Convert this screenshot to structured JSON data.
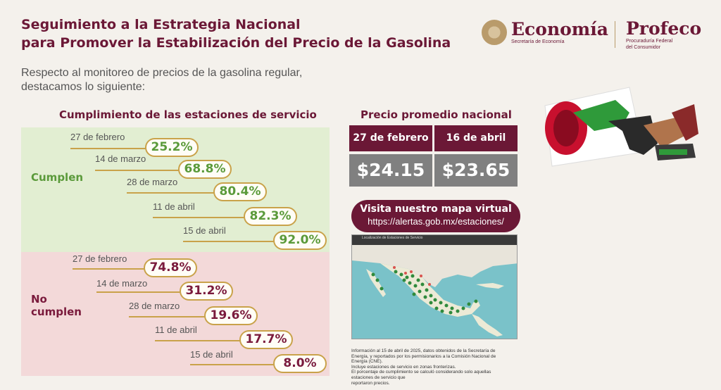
{
  "header": {
    "title_line1": "Seguimiento a la Estrategia Nacional",
    "title_line2": "para Promover la Estabilización del Precio de la Gasolina",
    "intro_line1": "Respecto al monitoreo de precios de la gasolina regular,",
    "intro_line2": "destacamos lo siguiente:"
  },
  "logos": {
    "economia_name": "Economía",
    "economia_sub": "Secretaría de Economía",
    "profeco_name": "Profeco",
    "profeco_sub1": "Procuraduría Federal",
    "profeco_sub2": "del Consumidor"
  },
  "compliance": {
    "title": "Cumplimiento de las estaciones de servicio",
    "good_label": "Cumplen",
    "bad_label_line1": "No",
    "bad_label_line2": "cumplen",
    "good_rows": [
      {
        "date": "27 de febrero",
        "value": "25.2%"
      },
      {
        "date": "14 de marzo",
        "value": "68.8%"
      },
      {
        "date": "28 de marzo",
        "value": "80.4%"
      },
      {
        "date": "11 de abril",
        "value": "82.3%"
      },
      {
        "date": "15 de abril",
        "value": "92.0%"
      }
    ],
    "bad_rows": [
      {
        "date": "27 de febrero",
        "value": "74.8%"
      },
      {
        "date": "14 de marzo",
        "value": "31.2%"
      },
      {
        "date": "28 de marzo",
        "value": "19.6%"
      },
      {
        "date": "11 de abril",
        "value": "17.7%"
      },
      {
        "date": "15 de abril",
        "value": "8.0%"
      }
    ]
  },
  "prices": {
    "title": "Precio promedio nacional",
    "date1": "27 de febrero",
    "date2": "16 de abril",
    "price1": "$24.15",
    "price2": "$23.65"
  },
  "map": {
    "button_line1": "Visita nuestro mapa virtual",
    "button_line2": "https://alertas.gob.mx/estaciones/",
    "window_title": "Localización de Estaciones de Servicio"
  },
  "footnote": {
    "line1": "Información al 15 de abril de 2025, datos obtenidos de la Secretaría de",
    "line2": "Energía, y reportados por los permisionarios a la Comisión Nacional de",
    "line3": "Energía (CNE).",
    "line4": "Incluye estaciones de servicio en zonas fronterizas.",
    "line5": "El porcentaje de cumplimiento se calculó considerando solo aquellas",
    "line6": "estaciones de servicio que",
    "line7": "reportaron precios."
  },
  "colors": {
    "brand": "#6b1836",
    "good": "#5a9a3a",
    "bad": "#7a1a3c",
    "gold": "#c9a24a"
  },
  "icons": {
    "seal": "national-seal-icon",
    "pump": "fuel-nozzle-image"
  }
}
